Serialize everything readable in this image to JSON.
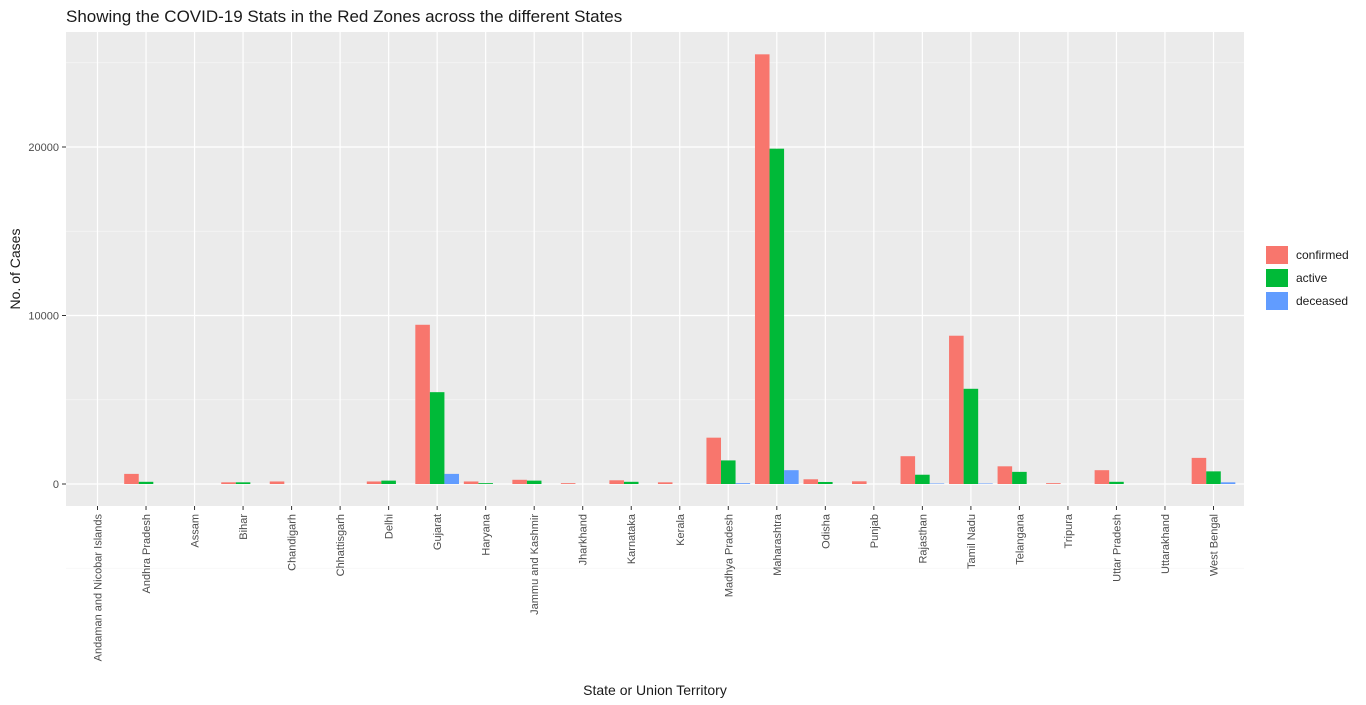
{
  "chart_data": {
    "type": "bar",
    "title": "Showing the COVID-19 Stats in the Red Zones across the different States",
    "xlabel": "State or Union Territory",
    "ylabel": "No. of Cases",
    "ylim": [
      -1300,
      27000
    ],
    "yticks": [
      0,
      10000,
      20000
    ],
    "ytick_labels": [
      "0",
      "10000",
      "20000"
    ],
    "grid": true,
    "legend_position": "right",
    "categories": [
      "Andaman and Nicobar Islands",
      "Andhra Pradesh",
      "Assam",
      "Bihar",
      "Chandigarh",
      "Chhattisgarh",
      "Delhi",
      "Gujarat",
      "Haryana",
      "Jammu and Kashmir",
      "Jharkhand",
      "Karnataka",
      "Kerala",
      "Madhya Pradesh",
      "Maharashtra",
      "Odisha",
      "Punjab",
      "Rajasthan",
      "Tamil Nadu",
      "Telangana",
      "Tripura",
      "Uttar Pradesh",
      "Uttarakhand",
      "West Bengal"
    ],
    "series": [
      {
        "name": "confirmed",
        "color": "#F8766D",
        "values": [
          0,
          600,
          0,
          100,
          150,
          0,
          150,
          9450,
          150,
          250,
          50,
          220,
          100,
          2750,
          25500,
          280,
          160,
          1650,
          8800,
          1050,
          50,
          820,
          0,
          1550
        ]
      },
      {
        "name": "active",
        "color": "#00BA38",
        "values": [
          0,
          130,
          0,
          100,
          0,
          0,
          200,
          5450,
          50,
          200,
          0,
          130,
          0,
          1400,
          19900,
          120,
          0,
          550,
          5650,
          720,
          0,
          130,
          0,
          750
        ]
      },
      {
        "name": "deceased",
        "color": "#619CFF",
        "values": [
          0,
          0,
          0,
          0,
          0,
          0,
          0,
          600,
          0,
          0,
          0,
          0,
          0,
          50,
          820,
          0,
          0,
          30,
          30,
          0,
          0,
          0,
          0,
          100
        ]
      }
    ]
  }
}
